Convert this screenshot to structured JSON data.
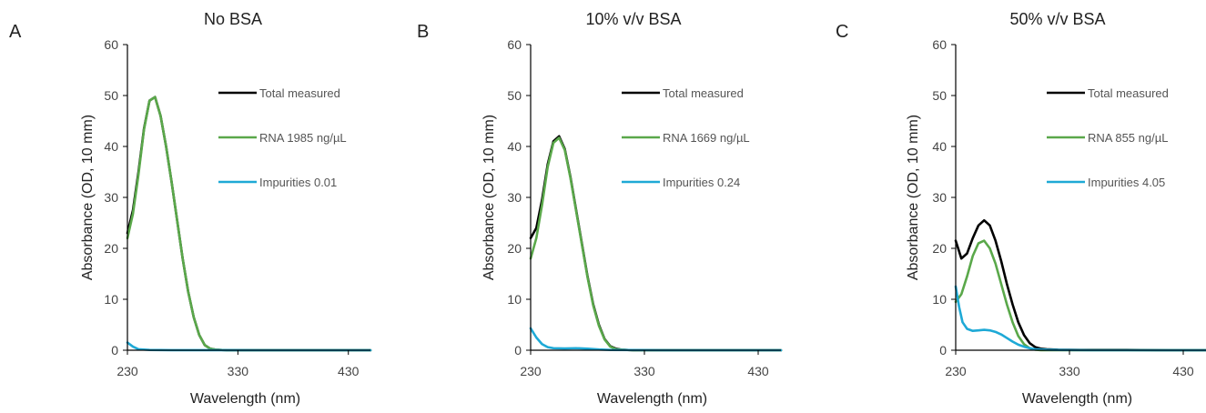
{
  "chart_data": [
    {
      "type": "line",
      "panel": "A",
      "title": "No BSA",
      "xlabel": "Wavelength (nm)",
      "ylabel": "Absorbance (OD,  10 mm)",
      "xlim": [
        230,
        450
      ],
      "ylim": [
        0,
        60
      ],
      "xticks": [
        "230",
        "330",
        "430"
      ],
      "yticks": [
        "0",
        "10",
        "20",
        "30",
        "40",
        "50",
        "60"
      ],
      "legend_position": "top-right",
      "series": [
        {
          "name": "Total measured",
          "color": "#000000",
          "x": [
            230,
            235,
            240,
            245,
            250,
            255,
            260,
            265,
            270,
            275,
            280,
            285,
            290,
            295,
            300,
            305,
            310,
            320,
            340,
            380,
            420,
            450
          ],
          "values": [
            23,
            27.5,
            35,
            43.5,
            49,
            49.7,
            46,
            40,
            33,
            25.5,
            18,
            11.5,
            6.5,
            3,
            1,
            0.3,
            0.1,
            0,
            0,
            0,
            0,
            0
          ]
        },
        {
          "name": "RNA 1985 ng/µL",
          "color": "#5aa84a",
          "x": [
            230,
            235,
            240,
            245,
            250,
            255,
            260,
            265,
            270,
            275,
            280,
            285,
            290,
            295,
            300,
            305,
            310,
            320,
            340,
            380,
            420,
            450
          ],
          "values": [
            22,
            26.8,
            34.5,
            43.3,
            49,
            49.7,
            46,
            40,
            33,
            25.5,
            18,
            11.5,
            6.5,
            3,
            1,
            0.3,
            0.1,
            0,
            0,
            0,
            0,
            0
          ]
        },
        {
          "name": "Impurities 0.01",
          "color": "#1ea9d6",
          "x": [
            230,
            235,
            240,
            250,
            270,
            300,
            350,
            400,
            450
          ],
          "values": [
            1.5,
            0.7,
            0.2,
            0.05,
            0.02,
            0.01,
            0,
            0,
            0
          ]
        }
      ]
    },
    {
      "type": "line",
      "panel": "B",
      "title": "10% v/v BSA",
      "xlabel": "Wavelength (nm)",
      "ylabel": "Absorbance (OD,  10 mm)",
      "xlim": [
        230,
        450
      ],
      "ylim": [
        0,
        60
      ],
      "xticks": [
        "230",
        "330",
        "430"
      ],
      "yticks": [
        "0",
        "10",
        "20",
        "30",
        "40",
        "50",
        "60"
      ],
      "legend_position": "top-right",
      "series": [
        {
          "name": "Total measured",
          "color": "#000000",
          "x": [
            230,
            235,
            240,
            245,
            250,
            255,
            260,
            265,
            270,
            275,
            280,
            285,
            290,
            295,
            300,
            305,
            310,
            320,
            340,
            380,
            420,
            450
          ],
          "values": [
            22,
            24,
            29.5,
            36.5,
            41,
            42,
            39.5,
            34,
            27.5,
            21,
            14.5,
            9,
            5,
            2.2,
            0.8,
            0.3,
            0.1,
            0,
            0,
            0,
            0,
            0
          ]
        },
        {
          "name": "RNA 1669 ng/µL",
          "color": "#5aa84a",
          "x": [
            230,
            235,
            240,
            245,
            250,
            255,
            260,
            265,
            270,
            275,
            280,
            285,
            290,
            295,
            300,
            305,
            310,
            320,
            340,
            380,
            420,
            450
          ],
          "values": [
            18,
            22,
            28.5,
            36,
            40.7,
            41.7,
            39.3,
            33.8,
            27.3,
            20.8,
            14.3,
            8.8,
            4.8,
            2.1,
            0.7,
            0.2,
            0.1,
            0,
            0,
            0,
            0,
            0
          ]
        },
        {
          "name": "Impurities 0.24",
          "color": "#1ea9d6",
          "x": [
            230,
            235,
            240,
            245,
            250,
            260,
            270,
            280,
            290,
            300,
            350,
            400,
            450
          ],
          "values": [
            4.3,
            2.5,
            1.2,
            0.6,
            0.4,
            0.35,
            0.4,
            0.3,
            0.15,
            0.05,
            0,
            0,
            0
          ]
        }
      ]
    },
    {
      "type": "line",
      "panel": "C",
      "title": "50% v/v BSA",
      "xlabel": "Wavelength (nm)",
      "ylabel": "Absorbance (OD,  10 mm)",
      "xlim": [
        230,
        450
      ],
      "ylim": [
        0,
        60
      ],
      "xticks": [
        "230",
        "330",
        "430"
      ],
      "yticks": [
        "0",
        "10",
        "20",
        "30",
        "40",
        "50",
        "60"
      ],
      "legend_position": "top-right",
      "series": [
        {
          "name": "Total measured",
          "color": "#000000",
          "x": [
            230,
            235,
            240,
            245,
            250,
            255,
            260,
            265,
            270,
            275,
            280,
            285,
            290,
            295,
            300,
            305,
            310,
            320,
            340,
            380,
            420,
            450
          ],
          "values": [
            21.5,
            18,
            19,
            22,
            24.5,
            25.5,
            24.5,
            21.5,
            17.5,
            13,
            9,
            5.5,
            3,
            1.4,
            0.6,
            0.3,
            0.2,
            0.1,
            0.05,
            0.05,
            0,
            0
          ]
        },
        {
          "name": "RNA 855 ng/µL",
          "color": "#5aa84a",
          "x": [
            230,
            235,
            240,
            245,
            250,
            255,
            260,
            265,
            270,
            275,
            280,
            285,
            290,
            295,
            300,
            305,
            310,
            320,
            340,
            380,
            420,
            450
          ],
          "values": [
            9.5,
            11,
            14.5,
            18.5,
            21,
            21.5,
            20,
            17,
            13,
            9,
            5.5,
            2.8,
            1.2,
            0.4,
            0.1,
            0,
            0,
            0,
            0,
            0,
            0,
            0
          ]
        },
        {
          "name": "Impurities 4.05",
          "color": "#1ea9d6",
          "x": [
            230,
            233,
            236,
            240,
            245,
            250,
            255,
            260,
            265,
            270,
            275,
            280,
            285,
            290,
            295,
            300,
            310,
            320,
            350,
            400,
            450
          ],
          "values": [
            12.5,
            8.5,
            5.5,
            4.2,
            3.8,
            3.9,
            4,
            3.9,
            3.6,
            3.1,
            2.4,
            1.7,
            1.1,
            0.7,
            0.4,
            0.2,
            0.1,
            0.05,
            0,
            0,
            0
          ]
        }
      ]
    }
  ]
}
